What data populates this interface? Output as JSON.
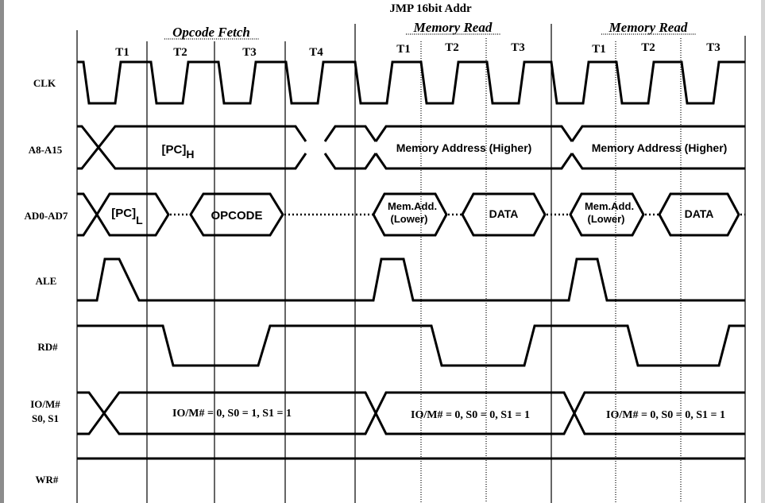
{
  "title": "JMP 16bit Addr",
  "phases": [
    {
      "label": "Opcode Fetch",
      "states": [
        "T1",
        "T2",
        "T3",
        "T4"
      ]
    },
    {
      "label": "Memory Read",
      "states": [
        "T1",
        "T2",
        "T3"
      ]
    },
    {
      "label": "Memory Read",
      "states": [
        "T1",
        "T2",
        "T3"
      ]
    }
  ],
  "signals": {
    "clk": "CLK",
    "a8_a15": "A8-A15",
    "ad0_ad7": "AD0-AD7",
    "ale": "ALE",
    "rd": "RD#",
    "iom_line1": "IO/M#",
    "iom_line2": "S0, S1",
    "wr": "WR#"
  },
  "a8_a15_values": {
    "pc_high_base": "[PC]",
    "pc_high_sub": "H",
    "mem_read_1": "Memory Address (Higher)",
    "mem_read_2": "Memory Address (Higher)"
  },
  "ad0_ad7_values": {
    "pc_low_base": "[PC]",
    "pc_low_sub": "L",
    "opcode": "OPCODE",
    "mem_add_1_line1": "Mem.Add.",
    "mem_add_1_line2": "(Lower)",
    "data_1": "DATA",
    "mem_add_2_line1": "Mem.Add.",
    "mem_add_2_line2": "(Lower)",
    "data_2": "DATA"
  },
  "status_values": {
    "opcode_fetch": "IO/M# = 0, S0 = 1, S1 = 1",
    "mem_read_1": "IO/M# = 0, S0 = 0, S1 = 1",
    "mem_read_2": "IO/M# = 0, S0 = 0, S1 = 1"
  }
}
